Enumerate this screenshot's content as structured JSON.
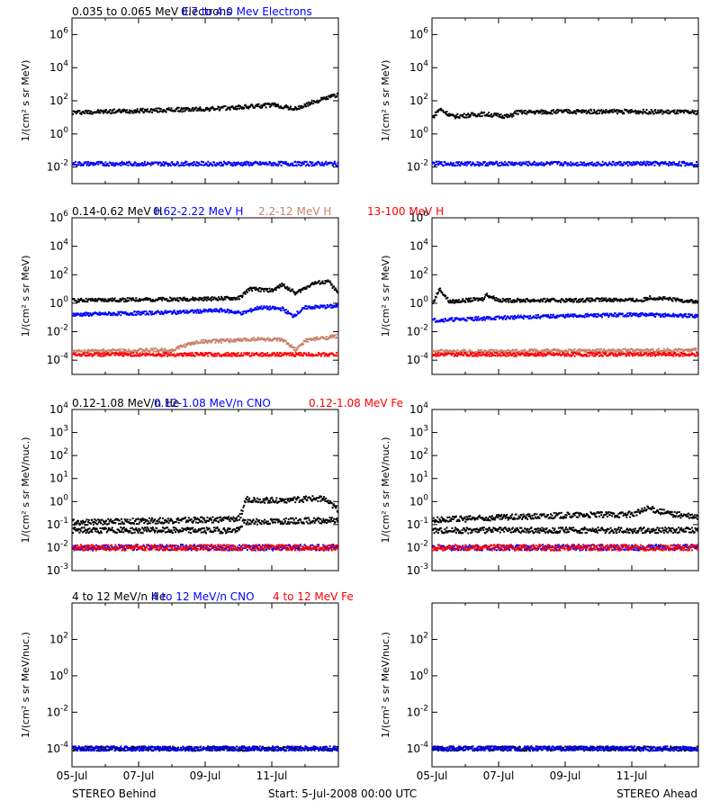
{
  "figure": {
    "footer": {
      "left": "STEREO Behind",
      "center": "Start:  5-Jul-2008 00:00 UTC",
      "right": "STEREO Ahead"
    },
    "x_ticks": [
      "05-Jul",
      "07-Jul",
      "09-Jul",
      "11-Jul"
    ],
    "colors": {
      "black": "#000000",
      "blue": "#0000ff",
      "tan": "#c8826e",
      "red": "#ff0000"
    }
  },
  "chart_data": [
    {
      "type": "scatter",
      "id": "electrons",
      "ylabel": "1/(cm² s sr MeV)",
      "yscale": "log",
      "ylim_exp": [
        -3,
        7
      ],
      "ytick_exps": [
        -2,
        0,
        2,
        4,
        6
      ],
      "xlim_days": [
        0,
        8
      ],
      "legend": [
        {
          "text": "0.035 to 0.065 MeV Electrons",
          "color": "#000000"
        },
        {
          "text": "0.7 to 4.0 Mev Electrons",
          "color": "#0000ff"
        }
      ],
      "panels": {
        "behind": [
          {
            "color": "#000000",
            "points": [
              [
                0,
                1.3
              ],
              [
                1,
                1.35
              ],
              [
                2,
                1.4
              ],
              [
                3,
                1.45
              ],
              [
                4,
                1.5
              ],
              [
                5,
                1.6
              ],
              [
                6,
                1.75
              ],
              [
                6.7,
                1.5
              ],
              [
                7.2,
                1.9
              ],
              [
                8,
                2.4
              ]
            ]
          },
          {
            "color": "#0000ff",
            "points": [
              [
                0,
                -1.8
              ],
              [
                8,
                -1.8
              ]
            ]
          }
        ],
        "ahead": [
          {
            "color": "#000000",
            "points": [
              [
                0,
                1.0
              ],
              [
                0.2,
                1.5
              ],
              [
                0.6,
                1.05
              ],
              [
                1.5,
                1.2
              ],
              [
                2.3,
                1.05
              ],
              [
                2.5,
                1.3
              ],
              [
                4,
                1.35
              ],
              [
                6,
                1.35
              ],
              [
                8,
                1.3
              ]
            ]
          },
          {
            "color": "#0000ff",
            "points": [
              [
                0,
                -1.8
              ],
              [
                8,
                -1.8
              ]
            ]
          }
        ]
      }
    },
    {
      "type": "scatter",
      "id": "protons",
      "ylabel": "1/(cm² s sr MeV)",
      "yscale": "log",
      "ylim_exp": [
        -5,
        6
      ],
      "ytick_exps": [
        -4,
        -2,
        0,
        2,
        4,
        6
      ],
      "xlim_days": [
        0,
        8
      ],
      "legend": [
        {
          "text": "0.14-0.62 MeV H",
          "color": "#000000"
        },
        {
          "text": "0.62-2.22 MeV H",
          "color": "#0000ff"
        },
        {
          "text": "2.2-12 MeV H",
          "color": "#c8826e"
        },
        {
          "text": "13-100 MeV H",
          "color": "#ff0000"
        }
      ],
      "panels": {
        "behind": [
          {
            "color": "#000000",
            "points": [
              [
                0,
                0.2
              ],
              [
                2,
                0.25
              ],
              [
                4,
                0.3
              ],
              [
                5,
                0.35
              ],
              [
                5.3,
                1.0
              ],
              [
                6,
                0.9
              ],
              [
                6.3,
                1.3
              ],
              [
                6.7,
                0.7
              ],
              [
                7.2,
                1.4
              ],
              [
                7.7,
                1.5
              ],
              [
                8,
                0.6
              ]
            ]
          },
          {
            "color": "#0000ff",
            "points": [
              [
                0,
                -0.8
              ],
              [
                2,
                -0.7
              ],
              [
                3.5,
                -0.6
              ],
              [
                4.5,
                -0.5
              ],
              [
                5.1,
                -0.7
              ],
              [
                5.6,
                -0.3
              ],
              [
                6.3,
                -0.4
              ],
              [
                6.6,
                -0.9
              ],
              [
                7,
                -0.3
              ],
              [
                8,
                -0.2
              ]
            ]
          },
          {
            "color": "#c8826e",
            "points": [
              [
                0,
                -3.4
              ],
              [
                2.5,
                -3.3
              ],
              [
                3,
                -3.3
              ],
              [
                3.3,
                -3.0
              ],
              [
                3.8,
                -2.7
              ],
              [
                5,
                -2.6
              ],
              [
                5.5,
                -2.5
              ],
              [
                6.3,
                -2.6
              ],
              [
                6.7,
                -3.3
              ],
              [
                7,
                -2.6
              ],
              [
                8,
                -2.3
              ]
            ]
          },
          {
            "color": "#ff0000",
            "points": [
              [
                0,
                -3.6
              ],
              [
                8,
                -3.6
              ]
            ]
          }
        ],
        "ahead": [
          {
            "color": "#000000",
            "points": [
              [
                0,
                0.0
              ],
              [
                0.2,
                1.0
              ],
              [
                0.5,
                0.1
              ],
              [
                1.5,
                0.3
              ],
              [
                1.6,
                0.6
              ],
              [
                2,
                0.2
              ],
              [
                4,
                0.2
              ],
              [
                5.5,
                0.25
              ],
              [
                6.3,
                0.2
              ],
              [
                6.5,
                0.4
              ],
              [
                8,
                0.1
              ]
            ]
          },
          {
            "color": "#0000ff",
            "points": [
              [
                0,
                -1.2
              ],
              [
                2.3,
                -1.0
              ],
              [
                4,
                -0.9
              ],
              [
                6,
                -0.8
              ],
              [
                8,
                -0.9
              ]
            ]
          },
          {
            "color": "#c8826e",
            "points": [
              [
                0,
                -3.4
              ],
              [
                8,
                -3.3
              ]
            ]
          },
          {
            "color": "#ff0000",
            "points": [
              [
                0,
                -3.6
              ],
              [
                8,
                -3.6
              ]
            ]
          }
        ]
      }
    },
    {
      "type": "scatter",
      "id": "ions-low",
      "ylabel": "1/(cm² s sr MeV/nuc.)",
      "yscale": "log",
      "ylim_exp": [
        -3,
        4
      ],
      "ytick_exps": [
        -3,
        -2,
        -1,
        0,
        1,
        2,
        3,
        4
      ],
      "xlim_days": [
        0,
        8
      ],
      "legend": [
        {
          "text": "0.12-1.08 MeV/n He",
          "color": "#000000"
        },
        {
          "text": "0.12-1.08 MeV/n CNO",
          "color": "#0000ff"
        },
        {
          "text": "0.12-1.08 MeV Fe",
          "color": "#ff0000"
        }
      ],
      "panels": {
        "behind": [
          {
            "color": "#000000",
            "points": [
              [
                0,
                -0.9
              ],
              [
                2,
                -0.85
              ],
              [
                4,
                -0.8
              ],
              [
                5,
                -0.75
              ],
              [
                5.2,
                0.1
              ],
              [
                6,
                0.05
              ],
              [
                7,
                0.1
              ],
              [
                7.5,
                0.15
              ],
              [
                8,
                -0.4
              ]
            ]
          },
          {
            "color": "#000000",
            "points": [
              [
                0,
                -1.25
              ],
              [
                5,
                -1.25
              ],
              [
                5.1,
                -0.9
              ],
              [
                8,
                -0.8
              ]
            ]
          },
          {
            "color": "#0000ff",
            "points": [
              [
                0,
                -2.0
              ],
              [
                8,
                -2.0
              ]
            ]
          },
          {
            "color": "#ff0000",
            "points": [
              [
                0,
                -2.0
              ],
              [
                8,
                -2.0
              ]
            ]
          }
        ],
        "ahead": [
          {
            "color": "#000000",
            "points": [
              [
                0,
                -0.8
              ],
              [
                2,
                -0.7
              ],
              [
                4,
                -0.6
              ],
              [
                6,
                -0.55
              ],
              [
                6.5,
                -0.3
              ],
              [
                7,
                -0.5
              ],
              [
                8,
                -0.7
              ]
            ]
          },
          {
            "color": "#000000",
            "points": [
              [
                0,
                -1.25
              ],
              [
                8,
                -1.25
              ]
            ]
          },
          {
            "color": "#0000ff",
            "points": [
              [
                0,
                -2.0
              ],
              [
                8,
                -2.0
              ]
            ]
          },
          {
            "color": "#ff0000",
            "points": [
              [
                0,
                -2.0
              ],
              [
                8,
                -2.0
              ]
            ]
          }
        ]
      }
    },
    {
      "type": "scatter",
      "id": "ions-high",
      "ylabel": "1/(cm² s sr MeV/nuc.)",
      "yscale": "log",
      "ylim_exp": [
        -5,
        4
      ],
      "ytick_exps": [
        -4,
        -2,
        0,
        2
      ],
      "xlim_days": [
        0,
        8
      ],
      "legend": [
        {
          "text": "4 to 12 MeV/n He",
          "color": "#000000"
        },
        {
          "text": "4 to 12 MeV/n CNO",
          "color": "#0000ff"
        },
        {
          "text": "4 to 12 MeV Fe",
          "color": "#ff0000"
        }
      ],
      "panels": {
        "behind": [
          {
            "color": "#000000",
            "points": [
              [
                0,
                -4.0
              ],
              [
                8,
                -4.0
              ]
            ]
          },
          {
            "color": "#0000ff",
            "points": [
              [
                0,
                -4.0
              ],
              [
                8,
                -4.0
              ]
            ]
          }
        ],
        "ahead": [
          {
            "color": "#000000",
            "points": [
              [
                0,
                -4.0
              ],
              [
                8,
                -4.0
              ]
            ]
          },
          {
            "color": "#0000ff",
            "points": [
              [
                0,
                -4.0
              ],
              [
                8,
                -4.0
              ]
            ]
          }
        ]
      }
    }
  ]
}
